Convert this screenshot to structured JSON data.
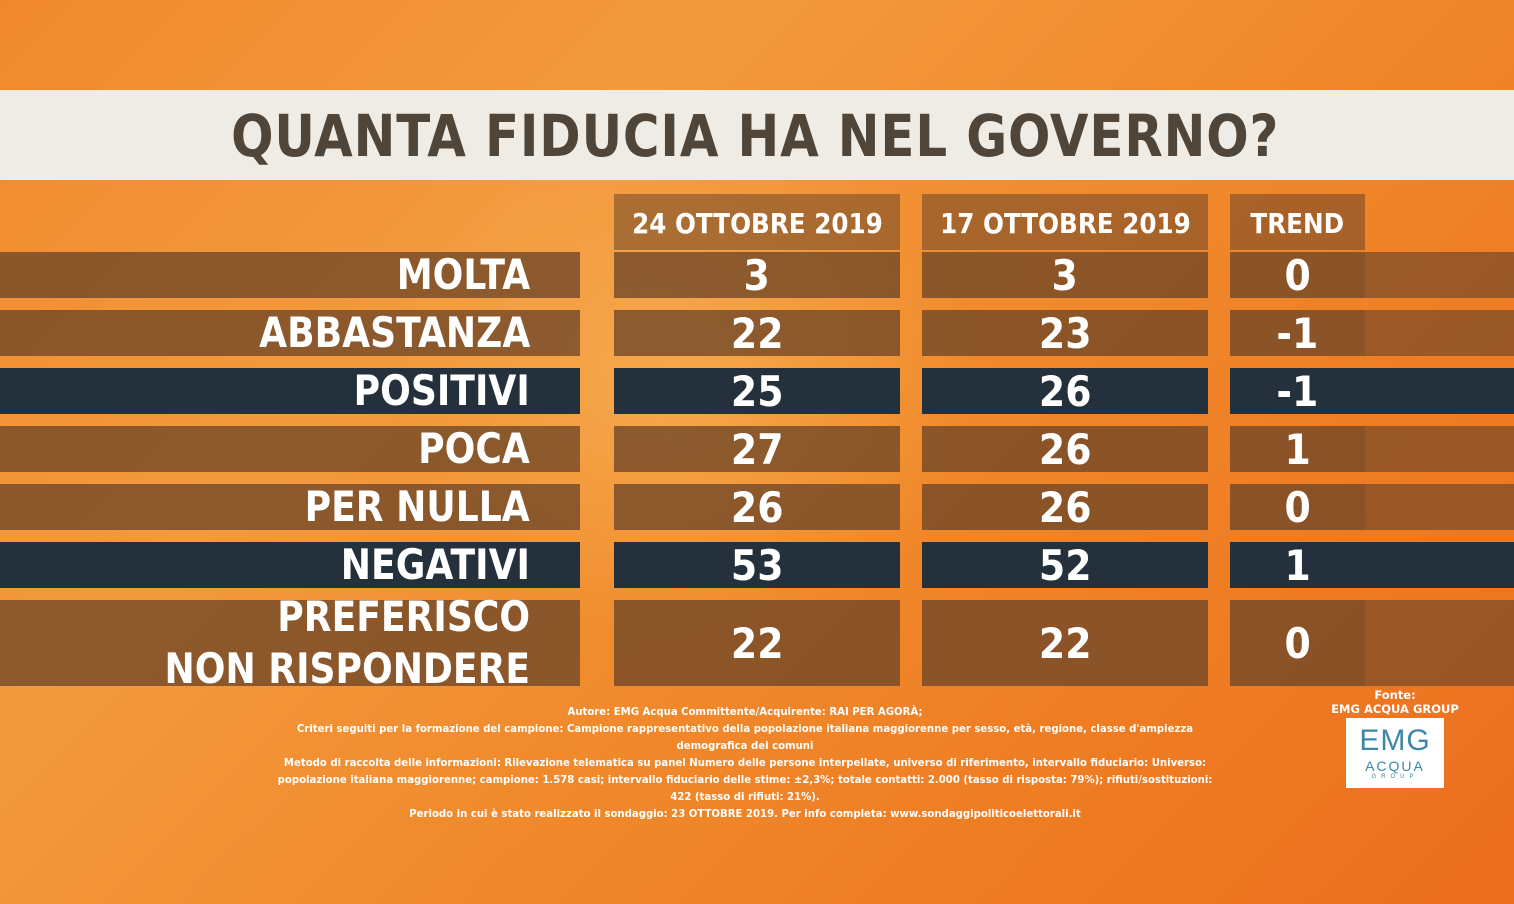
{
  "title": "QUANTA FIDUCIA HA NEL GOVERNO?",
  "chart_data": {
    "type": "table",
    "title": "QUANTA FIDUCIA HA NEL GOVERNO?",
    "columns": [
      "24 OTTOBRE 2019",
      "17 OTTOBRE 2019",
      "TREND"
    ],
    "rows": [
      {
        "label": "MOLTA",
        "values": [
          "3",
          "3",
          "0"
        ],
        "style": "brown"
      },
      {
        "label": "ABBASTANZA",
        "values": [
          "22",
          "23",
          "-1"
        ],
        "style": "brown"
      },
      {
        "label": "POSITIVI",
        "values": [
          "25",
          "26",
          "-1"
        ],
        "style": "dark"
      },
      {
        "label": "POCA",
        "values": [
          "27",
          "26",
          "1"
        ],
        "style": "brown"
      },
      {
        "label": "PER NULLA",
        "values": [
          "26",
          "26",
          "0"
        ],
        "style": "brown"
      },
      {
        "label": "NEGATIVI",
        "values": [
          "53",
          "52",
          "1"
        ],
        "style": "dark"
      },
      {
        "label": "PREFERISCO\nNON RISPONDERE",
        "values": [
          "22",
          "22",
          "0"
        ],
        "style": "brown"
      }
    ]
  },
  "notes": [
    "Autore: EMG Acqua Committente/Acquirente: RAI PER AGORÀ;",
    "Criteri seguiti per la formazione del campione: Campione rappresentativo della popolazione italiana maggiorenne per sesso, età, regione, classe d'ampiezza demografica dei comuni",
    "Metodo di raccolta delle informazioni: Rilevazione telematica su panel Numero delle persone interpellate, universo di riferimento, intervallo fiduciario: Universo:",
    "popolazione italiana maggiorenne; campione: 1.578 casi; intervallo fiduciario delle stime: ±2,3%; totale contatti: 2.000 (tasso di risposta: 79%); rifiuti/sostituzioni: 422 (tasso di rifiuti: 21%).",
    "Periodo in cui è stato realizzato il sondaggio: 23 OTTOBRE 2019. Per info completa: www.sondaggipoliticoelettorali.it"
  ],
  "source": {
    "label": "Fonte:",
    "name": "EMG ACQUA GROUP",
    "logo_main": "EMG",
    "logo_sub": "ACQUA",
    "logo_group": "GROUP"
  },
  "colors": {
    "background": "#f0892c",
    "title_bar": "#efece6",
    "title_text": "#4f4538",
    "row_brown": "#6e4628",
    "row_dark": "#24313c"
  }
}
